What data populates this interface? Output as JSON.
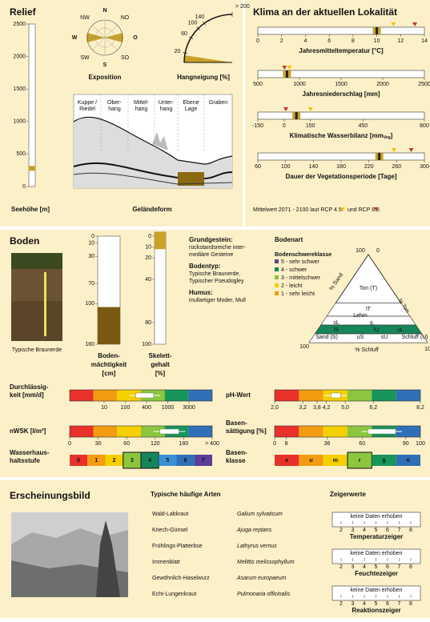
{
  "relief": {
    "title": "Relief",
    "elevation": {
      "label": "Seehöhe [m]",
      "ylim": [
        0,
        2500
      ],
      "yticks": [
        0,
        500,
        1000,
        1500,
        2000,
        2500
      ],
      "value": 280,
      "color": "#c8a227"
    },
    "exposition": {
      "label": "Exposition",
      "directions": [
        "N",
        "NO",
        "O",
        "SO",
        "S",
        "SW",
        "W",
        "NW"
      ]
    },
    "slope": {
      "label": "Hangneigung [%]",
      "ticks": [
        20,
        60,
        100,
        140,
        {
          "value": 200,
          "label": "> 200"
        }
      ],
      "value": 15,
      "color": "#c8a227"
    },
    "landform": {
      "label": "Geländeform",
      "positions": [
        [
          "Kuppe /",
          "Riedel"
        ],
        [
          "Ober-",
          "hang"
        ],
        [
          "Mittel-",
          "hang"
        ],
        [
          "Unter-",
          "hang"
        ],
        [
          "Ebene",
          "Lage"
        ],
        [
          "Graben"
        ]
      ]
    }
  },
  "climate": {
    "title": "Klima an der aktuellen Lokalität",
    "scales": [
      {
        "label": "Jahresmitteltemperatur [°C]",
        "xlim": [
          0,
          14
        ],
        "xticks": [
          0,
          2,
          4,
          6,
          8,
          10,
          12,
          14
        ],
        "current": 10,
        "rcp45": 11.4,
        "rcp85": 13.2
      },
      {
        "label": "Jahresniederschlag [mm]",
        "xlim": [
          500,
          2500
        ],
        "xticks": [
          500,
          1000,
          1500,
          2000,
          2500
        ],
        "current": 850,
        "rcp45": 880,
        "rcp85": 820
      },
      {
        "label": "Klimatische Wasserbilanz [mm",
        "label_sub": "Veg",
        "label_end": "]",
        "xlim": [
          -150,
          800
        ],
        "xticks": [
          -150,
          0,
          150,
          450,
          800
        ],
        "current": 70,
        "rcp45": 150,
        "rcp85": 10
      },
      {
        "label": "Dauer der Vegetationsperiode [Tage]",
        "xlim": [
          60,
          300
        ],
        "xticks": [
          60,
          100,
          140,
          180,
          220,
          260,
          300
        ],
        "current": 235,
        "rcp45": 256,
        "rcp85": 281
      }
    ],
    "legend": {
      "text": "Mittelwert 2071 - 2100 laut RCP 4.5",
      "and": "und RCP 8.5",
      "rcp45_color": "#f2c200",
      "rcp85_color": "#c0392b"
    }
  },
  "soil": {
    "title": "Boden",
    "photo_caption": "Typische Braunerde",
    "depth": {
      "label": [
        "Boden-",
        "mächtigkeit",
        "[cm]"
      ],
      "ylim": [
        0,
        160
      ],
      "yticks": [
        0,
        10,
        30,
        70,
        100,
        160
      ],
      "value": 105,
      "color": "#7a5a12"
    },
    "skeleton": {
      "label": [
        "Skelett-",
        "gehalt",
        "[%]"
      ],
      "ylim": [
        0,
        100
      ],
      "yticks": [
        0,
        10,
        20,
        40,
        80,
        100
      ],
      "value": 12,
      "color": "#c8a227"
    },
    "info": [
      {
        "heading": "Grundgestein:",
        "text": [
          "rückstandsreiche inter-",
          "mediäre Gesteine"
        ]
      },
      {
        "heading": "Bodentyp:",
        "text": [
          "Typische Braunerde,",
          "Typischer Pseudogley"
        ]
      },
      {
        "heading": "Humus:",
        "text": [
          "mullartiger Moder, Mull"
        ]
      }
    ],
    "texture": {
      "title": "Bodenart",
      "legend_title": "Bodenschwereklasse",
      "classes": [
        {
          "label": "5 - sehr schwer",
          "color": "#6c3d91"
        },
        {
          "label": "4 - schwer",
          "color": "#17855a"
        },
        {
          "label": "3 - mittelschwer",
          "color": "#8cc63f"
        },
        {
          "label": "2 - leicht",
          "color": "#f5d000"
        },
        {
          "label": "1 - sehr leicht",
          "color": "#f39c12"
        }
      ],
      "axes": {
        "sand": "% Sand",
        "ton": "% Ton",
        "schluff": "% Schluff"
      },
      "corners": [
        100,
        0,
        100,
        100
      ],
      "fields": [
        "Ton (T)",
        "lT",
        "Lehm",
        "sL",
        "lS",
        "uL",
        "tL",
        "lU",
        "Sand (S)",
        "uS",
        "sU",
        "Schluff (U)"
      ]
    },
    "bars": [
      {
        "label": [
          "Durchlässig-",
          "keit [mm/d]"
        ],
        "xticks": [
          10,
          100,
          400,
          1000,
          3000
        ],
        "box": [
          250,
          600
        ],
        "colors": [
          "#e8312a",
          "#f39c12",
          "#f5d000",
          "#8cc63f",
          "#17955a",
          "#2f6fb5"
        ]
      },
      {
        "label": [
          "nWSK [l/m²]"
        ],
        "xticks": [
          0,
          30,
          60,
          120,
          180,
          {
            "value": 400,
            "label": "> 400"
          }
        ],
        "box": [
          130,
          170
        ],
        "colors": [
          "#e8312a",
          "#f39c12",
          "#f5d000",
          "#8cc63f",
          "#17955a",
          "#2f6fb5"
        ]
      },
      {
        "label": [
          "pH-Wert"
        ],
        "xlim": [
          2,
          8.2
        ],
        "xticks": [
          {
            "value": 2,
            "label": "2,0"
          },
          {
            "value": 3.2,
            "label": "3,2"
          },
          {
            "value": 3.8,
            "label": "3,8"
          },
          {
            "value": 4.2,
            "label": "4,2"
          },
          {
            "value": 5,
            "label": "5,0"
          },
          {
            "value": 6.2,
            "label": "6,2"
          },
          {
            "value": 8.2,
            "label": "8,2"
          }
        ],
        "box": [
          4.4,
          4.8
        ],
        "colors": [
          "#e8312a",
          "#f39c12",
          "#f5d000",
          "#8cc63f",
          "#17955a",
          "#2f6fb5"
        ]
      },
      {
        "label": [
          "Basen-",
          "sättigung [%]"
        ],
        "xlim": [
          0,
          100
        ],
        "xticks": [
          0,
          8,
          36,
          60,
          90,
          100
        ],
        "box": [
          64,
          83
        ],
        "colors": [
          "#e8312a",
          "#f39c12",
          "#f5d000",
          "#8cc63f",
          "#17955a",
          "#2f6fb5"
        ]
      }
    ],
    "classes": [
      {
        "label": [
          "Wasserhaus-",
          "haltsstufe"
        ],
        "items": [
          "0",
          "1",
          "2",
          "3",
          "4",
          "5",
          "6",
          "7"
        ],
        "selected": [
          "3",
          "4"
        ],
        "colors": [
          "#e8312a",
          "#f39c12",
          "#f5d000",
          "#8cc63f",
          "#17855a",
          "#3a8fd6",
          "#2f6fb5",
          "#5a3d9a"
        ]
      },
      {
        "label": [
          "Basen-",
          "klasse"
        ],
        "items": [
          "e",
          "u",
          "m",
          "r",
          "g",
          "o"
        ],
        "selected": [
          "r"
        ],
        "colors": [
          "#e8312a",
          "#f39c12",
          "#f5d000",
          "#8cc63f",
          "#17955a",
          "#2f6fb5"
        ]
      }
    ]
  },
  "appearance": {
    "title": "Erscheinungsbild",
    "species_title": "Typische häufige Arten",
    "species": [
      [
        "Wald-Labkraut",
        "Galium sylvaticum"
      ],
      [
        "Kriech-Günsel",
        "Ajuga reptans"
      ],
      [
        "Frühlings-Platterbse",
        "Lathyrus vernus"
      ],
      [
        "Immenblatt",
        "Melittis melissophyllum"
      ],
      [
        "Gewöhnlich-Haselwurz",
        "Asarum europaeum"
      ],
      [
        "Echt-Lungenkraut",
        "Pulmonaria officinalis"
      ]
    ],
    "indicators_title": "Zeigerwerte",
    "indicators": [
      {
        "label": "Temperaturzeiger",
        "note": "keine Daten erhoben",
        "ticks": [
          2,
          3,
          4,
          5,
          6,
          7,
          8
        ]
      },
      {
        "label": "Feuchtezeiger",
        "note": "keine Daten erhoben",
        "ticks": [
          2,
          3,
          4,
          5,
          6,
          7,
          8
        ]
      },
      {
        "label": "Reaktionszeiger",
        "note": "keine Daten erhoben",
        "ticks": [
          2,
          3,
          4,
          5,
          6,
          7,
          8
        ]
      }
    ]
  }
}
